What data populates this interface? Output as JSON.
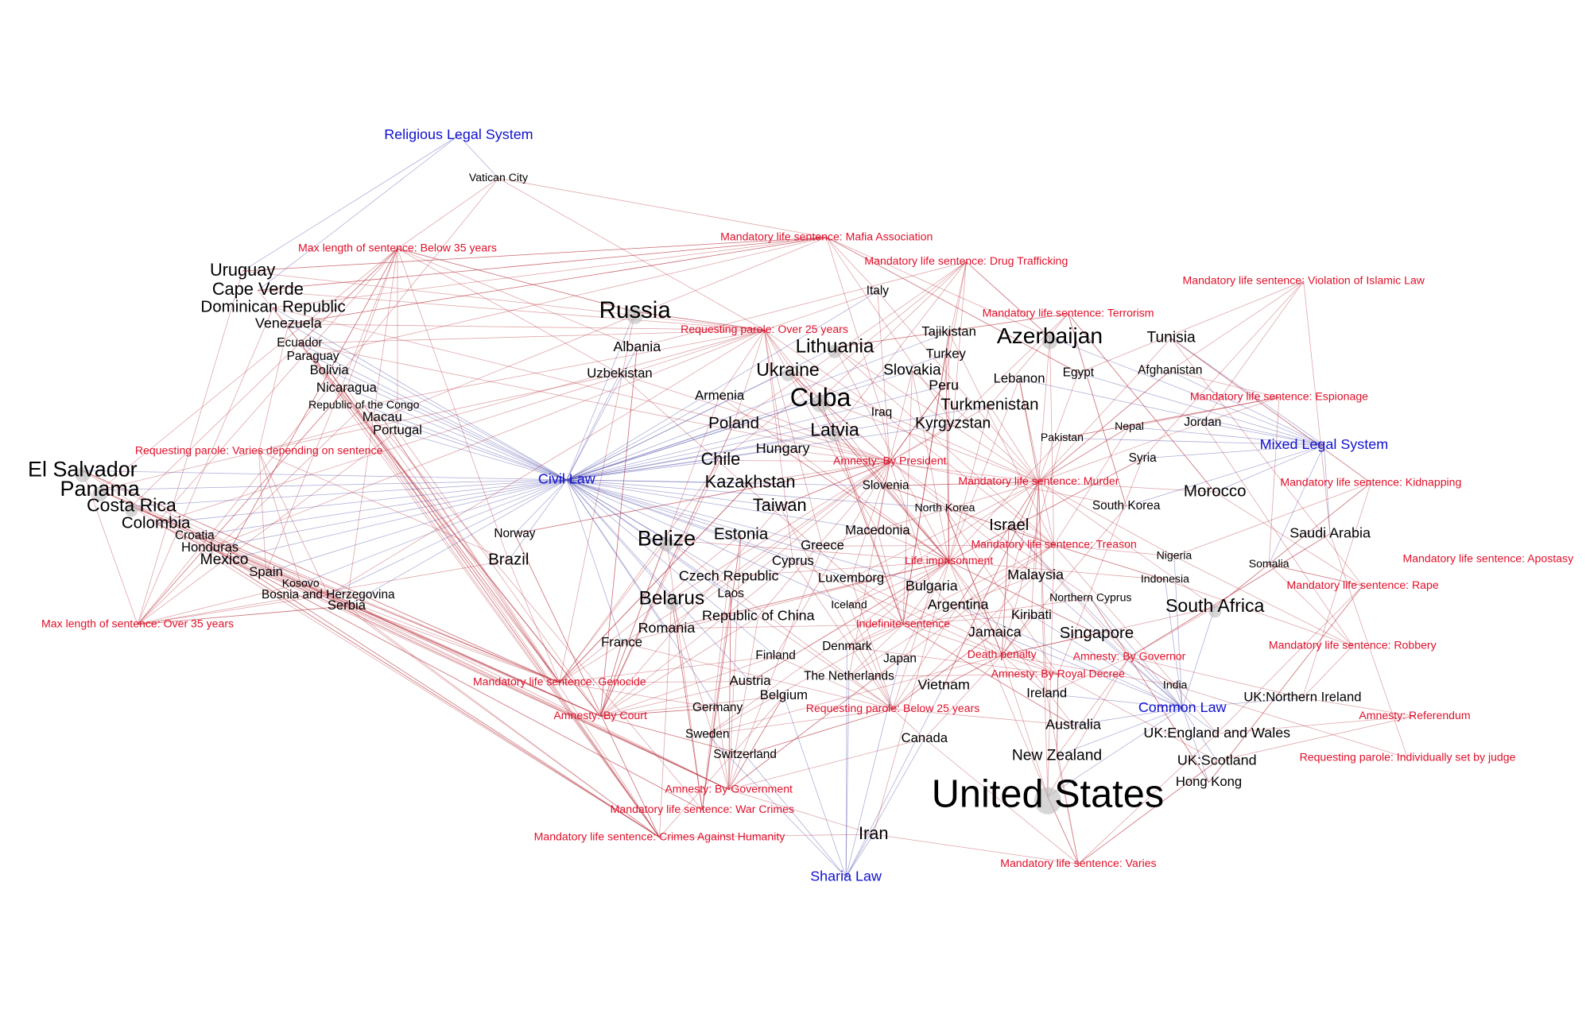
{
  "legal_systems": [
    "Religious Legal System",
    "Civil Law",
    "Mixed Legal System",
    "Common Law",
    "Sharia Law"
  ],
  "attributes": [
    "Max length of sentence: Below 35 years",
    "Requesting parole: Varies depending on sentence",
    "Max length of sentence: Over 35 years",
    "Mandatory life sentence: Mafia Association",
    "Mandatory life sentence: Drug Trafficking",
    "Mandatory life sentence: Violation of Islamic Law",
    "Mandatory life sentence: Terrorism",
    "Requesting parole: Over 25 years",
    "Mandatory life sentence: Espionage",
    "Amnesty: By President",
    "Mandatory life sentence: Murder",
    "Mandatory life sentence: Kidnapping",
    "Mandatory life sentence: Treason",
    "Mandatory life sentence: Apostasy",
    "Life imprisonment",
    "Mandatory life sentence: Rape",
    "Indefinite sentence",
    "Mandatory life sentence: Robbery",
    "Death penalty",
    "Amnesty: By Governor",
    "Amnesty: By Royal Decree",
    "Mandatory life sentence: Genocide",
    "Requesting parole: Below 25 years",
    "Amnesty: By Court",
    "Amnesty: Referendum",
    "Requesting parole: Individually set by judge",
    "Amnesty: By Government",
    "Mandatory life sentence: War Crimes",
    "Mandatory life sentence: Crimes Against Humanity",
    "Mandatory life sentence: Varies"
  ],
  "countries": [
    "Vatican City",
    "Uruguay",
    "Cape Verde",
    "Dominican Republic",
    "Venezuela",
    "Ecuador",
    "Paraguay",
    "Bolivia",
    "Nicaragua",
    "Republic of the Congo",
    "Macau",
    "Portugal",
    "El Salvador",
    "Panama",
    "Costa Rica",
    "Colombia",
    "Croatia",
    "Honduras",
    "Mexico",
    "Spain",
    "Kosovo",
    "Bosnia and Herzegovina",
    "Serbia",
    "Norway",
    "Brazil",
    "Russia",
    "Albania",
    "Uzbekistan",
    "Armenia",
    "Poland",
    "Chile",
    "Hungary",
    "Kazakhstan",
    "Taiwan",
    "Belize",
    "Estonia",
    "Czech Republic",
    "Belarus",
    "Laos",
    "Republic of China",
    "Romania",
    "France",
    "Lithuania",
    "Ukraine",
    "Cuba",
    "Latvia",
    "Italy",
    "Tajikistan",
    "Turkey",
    "Slovakia",
    "Peru",
    "Iraq",
    "Azerbaijan",
    "Tunisia",
    "Afghanistan",
    "Egypt",
    "Lebanon",
    "Turkmenistan",
    "Kyrgyzstan",
    "Nepal",
    "Jordan",
    "Pakistan",
    "Syria",
    "Slovenia",
    "North Korea",
    "South Korea",
    "Morocco",
    "Israel",
    "Saudi Arabia",
    "Macedonia",
    "Greece",
    "Cyprus",
    "Luxemborg",
    "Bulgaria",
    "Malaysia",
    "Nigeria",
    "Somalia",
    "Indonesia",
    "Northern Cyprus",
    "South Africa",
    "Iceland",
    "Argentina",
    "Kiribati",
    "Singapore",
    "Jamaica",
    "Denmark",
    "Japan",
    "Finland",
    "Austria",
    "The Netherlands",
    "Vietnam",
    "India",
    "Ireland",
    "UK:Northern Ireland",
    "Germany",
    "Belgium",
    "Australia",
    "UK:England and Wales",
    "Sweden",
    "Canada",
    "Switzerland",
    "New Zealand",
    "UK:Scotland",
    "Hong Kong",
    "United States",
    "Iran"
  ]
}
